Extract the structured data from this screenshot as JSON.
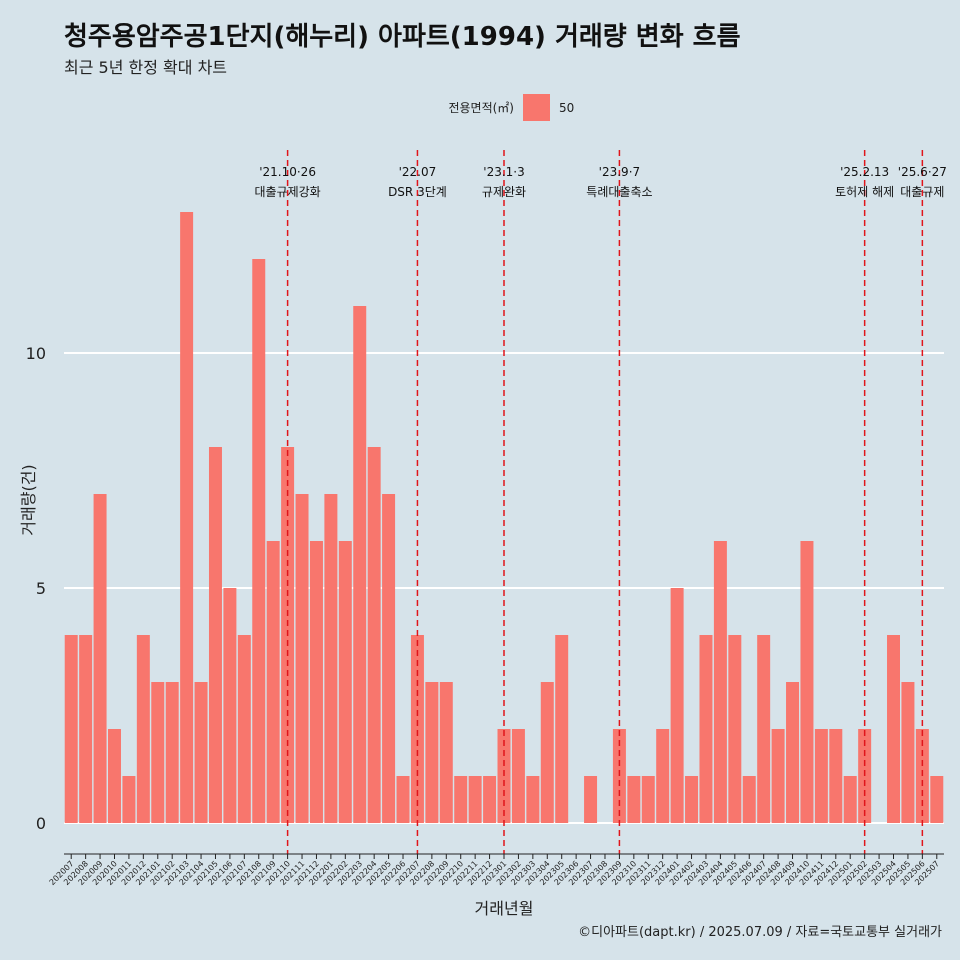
{
  "title": "청주용암주공1단지(해누리) 아파트(1994) 거래량 변화 흐름",
  "subtitle": "최근 5년 한정 확대 차트",
  "caption": "©디아파트(dapt.kr) / 2025.07.09 / 자료=국토교통부 실거래가",
  "legend": {
    "title": "전용면적(㎡)",
    "label": "50",
    "color": "#f8766d"
  },
  "chart_data": {
    "type": "bar",
    "xlabel": "거래년월",
    "ylabel": "거래량(건)",
    "ylim": [
      0,
      13.8
    ],
    "yticks": [
      0,
      5,
      10
    ],
    "grid": true,
    "legend_position": "top",
    "bar_color": "#f8766d",
    "categories": [
      "202007",
      "202008",
      "202009",
      "202010",
      "202011",
      "202012",
      "202101",
      "202102",
      "202103",
      "202104",
      "202105",
      "202106",
      "202107",
      "202108",
      "202109",
      "202110",
      "202111",
      "202112",
      "202201",
      "202202",
      "202203",
      "202204",
      "202205",
      "202206",
      "202207",
      "202208",
      "202209",
      "202210",
      "202211",
      "202212",
      "202301",
      "202302",
      "202303",
      "202304",
      "202305",
      "202306",
      "202307",
      "202308",
      "202309",
      "202310",
      "202311",
      "202312",
      "202401",
      "202402",
      "202403",
      "202404",
      "202405",
      "202406",
      "202407",
      "202408",
      "202409",
      "202410",
      "202411",
      "202412",
      "202501",
      "202502",
      "202503",
      "202504",
      "202505",
      "202506",
      "202507"
    ],
    "series": [
      {
        "values": [
          4,
          4,
          7,
          2,
          1,
          4,
          3,
          3,
          13,
          3,
          8,
          5,
          4,
          12,
          6,
          8,
          7,
          6,
          7,
          6,
          11,
          8,
          7,
          1,
          4,
          3,
          3,
          1,
          1,
          1,
          2,
          2,
          1,
          3,
          4,
          0,
          1,
          0,
          2,
          1,
          1,
          2,
          5,
          1,
          4,
          6,
          4,
          1,
          4,
          2,
          3,
          6,
          2,
          2,
          1,
          2,
          0,
          4,
          3,
          2,
          1
        ]
      }
    ],
    "annotations": [
      {
        "x": "202110",
        "date": "'21.10·26",
        "label": "대출규제강화"
      },
      {
        "x": "202207",
        "date": "'22.07",
        "label": "DSR 3단계"
      },
      {
        "x": "202301",
        "date": "'23.1·3",
        "label": "규제완화"
      },
      {
        "x": "202309",
        "date": "'23.9·7",
        "label": "특례대출축소"
      },
      {
        "x": "202502",
        "date": "'25.2.13",
        "label": "토허제 해제"
      },
      {
        "x": "202506",
        "date": "'25.6·27",
        "label": "대출규제"
      }
    ]
  }
}
